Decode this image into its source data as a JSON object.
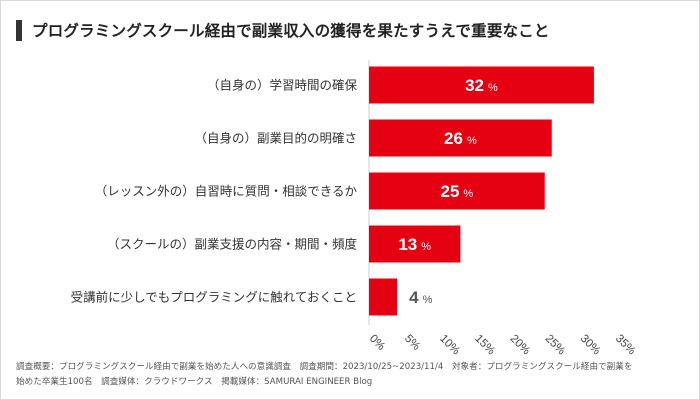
{
  "title": "プログラミングスクール経由で副業収入の獲得を果たすうえで重要なこと",
  "colors": {
    "bar": "#e50012",
    "title_bar": "#333333",
    "value_text_inside": "#ffffff",
    "value_text_outside": "#555555"
  },
  "chart_data": {
    "type": "bar",
    "orientation": "horizontal",
    "categories": [
      "（自身の）学習時間の確保",
      "（自身の）副業目的の明確さ",
      "（レッスン外の）自習時に質問・相談できるか",
      "（スクールの）副業支援の内容・期間・頻度",
      "受講前に少しでもプログラミングに触れておくこと"
    ],
    "values": [
      32,
      26,
      25,
      13,
      4
    ],
    "value_unit": "%",
    "xlim": [
      0,
      35
    ],
    "xticks": [
      "0%",
      "5%",
      "10%",
      "15%",
      "20%",
      "25%",
      "30%",
      "35%"
    ],
    "grid": false
  },
  "footnote": {
    "line1": "調査概要：プログラミングスクール経由で副業を始めた人への意識調査　調査期間：2023/10/25~2023/11/4　対象者：プログラミングスクール経由で副業を",
    "line2": "始めた卒業生100名　調査媒体：クラウドワークス　掲載媒体：SAMURAI ENGINEER Blog"
  }
}
